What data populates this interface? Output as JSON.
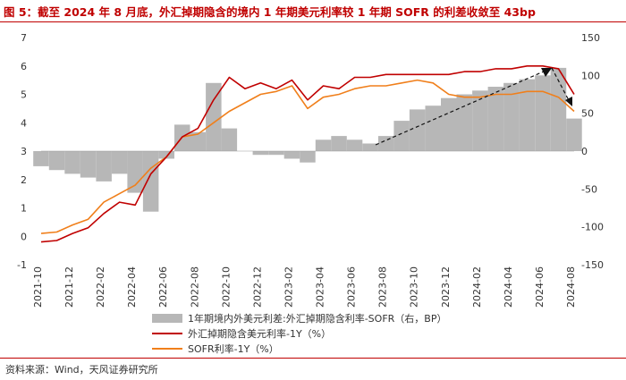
{
  "title": "图 5：截至 2024 年 8 月底，外汇掉期隐含的境内 1 年期美元利率较 1 年期 SOFR 的利差收敛至 43bp",
  "source": "资料来源：Wind，天风证券研究所",
  "colors": {
    "spread": "#b7b7b7",
    "implied": "#c00000",
    "sofr": "#f07f1b",
    "accent": "#c00000"
  },
  "chart_data": {
    "type": "line",
    "x": [
      "2021-10",
      "2021-11",
      "2021-12",
      "2022-01",
      "2022-02",
      "2022-03",
      "2022-04",
      "2022-05",
      "2022-06",
      "2022-07",
      "2022-08",
      "2022-09",
      "2022-10",
      "2022-11",
      "2022-12",
      "2023-01",
      "2023-02",
      "2023-03",
      "2023-04",
      "2023-05",
      "2023-06",
      "2023-07",
      "2023-08",
      "2023-09",
      "2023-10",
      "2023-11",
      "2023-12",
      "2024-01",
      "2024-02",
      "2024-03",
      "2024-04",
      "2024-05",
      "2024-06",
      "2024-07",
      "2024-08"
    ],
    "x_tick_labels": [
      "2021-10",
      "2021-12",
      "2022-02",
      "2022-04",
      "2022-06",
      "2022-08",
      "2022-10",
      "2022-12",
      "2023-02",
      "2023-04",
      "2023-06",
      "2023-08",
      "2023-10",
      "2023-12",
      "2024-02",
      "2024-04",
      "2024-06",
      "2024-08"
    ],
    "y_left": {
      "min": -1,
      "max": 7,
      "ticks": [
        -1,
        0,
        1,
        2,
        3,
        4,
        5,
        6,
        7
      ],
      "unit": "%"
    },
    "y_right": {
      "min": -150,
      "max": 150,
      "ticks": [
        -150,
        -100,
        -50,
        0,
        50,
        100,
        150
      ],
      "unit": "BP"
    },
    "series": [
      {
        "name": "1年期境内外美元利差:外汇掉期隐含利率-SOFR（右，BP）",
        "axis": "right",
        "type": "area",
        "values": [
          -20,
          -25,
          -30,
          -35,
          -40,
          -30,
          -55,
          -80,
          -10,
          35,
          25,
          90,
          30,
          0,
          -5,
          -5,
          -10,
          -15,
          15,
          20,
          15,
          10,
          20,
          40,
          55,
          60,
          70,
          75,
          80,
          85,
          90,
          95,
          100,
          110,
          43
        ]
      },
      {
        "name": "外汇掉期隐含美元利率-1Y（%）",
        "axis": "left",
        "type": "line",
        "values": [
          -0.2,
          -0.15,
          0.1,
          0.3,
          0.8,
          1.2,
          1.1,
          2.2,
          2.8,
          3.5,
          3.8,
          4.8,
          5.6,
          5.2,
          5.4,
          5.2,
          5.5,
          4.8,
          5.3,
          5.2,
          5.6,
          5.6,
          5.7,
          5.7,
          5.7,
          5.7,
          5.7,
          5.8,
          5.8,
          5.9,
          5.9,
          6.0,
          6.0,
          5.9,
          5.0
        ]
      },
      {
        "name": "SOFR利率-1Y（%）",
        "axis": "left",
        "type": "line",
        "values": [
          0.1,
          0.15,
          0.4,
          0.6,
          1.2,
          1.5,
          1.8,
          2.4,
          2.8,
          3.5,
          3.6,
          4.0,
          4.4,
          4.7,
          5.0,
          5.1,
          5.3,
          4.5,
          4.9,
          5.0,
          5.2,
          5.3,
          5.3,
          5.4,
          5.5,
          5.4,
          5.0,
          4.9,
          4.9,
          5.0,
          5.0,
          5.1,
          5.1,
          4.9,
          4.4
        ]
      }
    ]
  }
}
